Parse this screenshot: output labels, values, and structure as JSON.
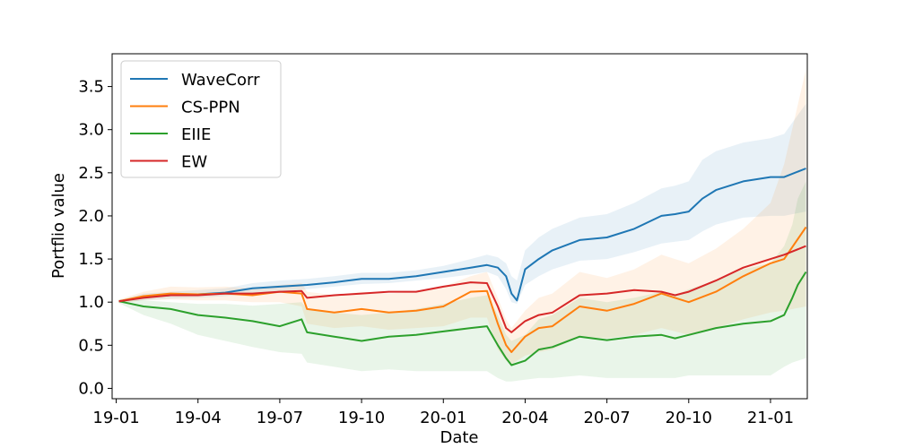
{
  "chart_data": {
    "type": "line",
    "title": "",
    "xlabel": "Date",
    "ylabel": "Portflio value",
    "xlim": [
      -0.15,
      25.35
    ],
    "ylim": [
      -0.12,
      3.88
    ],
    "x_ticks": [
      {
        "value": 0,
        "label": "19-01"
      },
      {
        "value": 3,
        "label": "19-04"
      },
      {
        "value": 6,
        "label": "19-07"
      },
      {
        "value": 9,
        "label": "19-10"
      },
      {
        "value": 12,
        "label": "20-01"
      },
      {
        "value": 15,
        "label": "20-04"
      },
      {
        "value": 18,
        "label": "20-07"
      },
      {
        "value": 21,
        "label": "20-10"
      },
      {
        "value": 24,
        "label": "21-01"
      }
    ],
    "y_ticks": [
      {
        "value": 0.0,
        "label": "0.0"
      },
      {
        "value": 0.5,
        "label": "0.5"
      },
      {
        "value": 1.0,
        "label": "1.0"
      },
      {
        "value": 1.5,
        "label": "1.5"
      },
      {
        "value": 2.0,
        "label": "2.0"
      },
      {
        "value": 2.5,
        "label": "2.5"
      },
      {
        "value": 3.0,
        "label": "3.0"
      },
      {
        "value": 3.5,
        "label": "3.5"
      }
    ],
    "grid": false,
    "legend_position": "top-left",
    "series": [
      {
        "name": "WaveCorr",
        "color": "#1f77b4",
        "x": [
          0.1,
          1,
          2,
          3,
          4,
          5,
          6,
          7,
          8,
          9,
          10,
          11,
          12,
          13,
          13.6,
          14,
          14.3,
          14.5,
          14.7,
          15,
          15.5,
          16,
          17,
          18,
          19,
          20,
          20.5,
          21,
          21.5,
          22,
          23,
          24,
          24.5,
          25.3
        ],
        "y": [
          1.01,
          1.06,
          1.08,
          1.09,
          1.11,
          1.16,
          1.18,
          1.2,
          1.23,
          1.27,
          1.27,
          1.3,
          1.35,
          1.4,
          1.43,
          1.4,
          1.3,
          1.1,
          1.02,
          1.38,
          1.5,
          1.6,
          1.72,
          1.75,
          1.85,
          2.0,
          2.02,
          2.05,
          2.2,
          2.3,
          2.4,
          2.45,
          2.45,
          2.55
        ],
        "band_lower": [
          1.0,
          1.02,
          1.04,
          1.05,
          1.07,
          1.1,
          1.12,
          1.15,
          1.18,
          1.21,
          1.22,
          1.25,
          1.28,
          1.32,
          1.35,
          1.3,
          1.15,
          1.0,
          0.98,
          1.2,
          1.3,
          1.38,
          1.48,
          1.5,
          1.58,
          1.68,
          1.7,
          1.72,
          1.82,
          1.9,
          1.98,
          2.0,
          2.0,
          2.05
        ],
        "band_upper": [
          1.02,
          1.1,
          1.12,
          1.14,
          1.16,
          1.22,
          1.25,
          1.27,
          1.3,
          1.34,
          1.34,
          1.37,
          1.42,
          1.5,
          1.55,
          1.52,
          1.45,
          1.3,
          1.25,
          1.6,
          1.75,
          1.85,
          1.98,
          2.02,
          2.15,
          2.32,
          2.35,
          2.4,
          2.65,
          2.75,
          2.85,
          2.9,
          2.95,
          3.3
        ]
      },
      {
        "name": "CS-PPN",
        "color": "#ff7f0e",
        "x": [
          0.1,
          1,
          2,
          3,
          4,
          5,
          6,
          6.8,
          7,
          8,
          9,
          10,
          11,
          12,
          13,
          13.6,
          14,
          14.3,
          14.5,
          15,
          15.5,
          16,
          17,
          18,
          19,
          20,
          20.5,
          21,
          22,
          23,
          24,
          24.5,
          25.3
        ],
        "y": [
          1.01,
          1.07,
          1.1,
          1.09,
          1.1,
          1.08,
          1.12,
          1.1,
          0.92,
          0.88,
          0.92,
          0.88,
          0.9,
          0.95,
          1.12,
          1.13,
          0.75,
          0.5,
          0.42,
          0.6,
          0.7,
          0.72,
          0.95,
          0.9,
          0.98,
          1.1,
          1.05,
          1.0,
          1.12,
          1.3,
          1.45,
          1.5,
          1.87
        ],
        "band_lower": [
          0.99,
          1.02,
          1.03,
          1.02,
          1.02,
          1.0,
          1.0,
          0.95,
          0.75,
          0.7,
          0.72,
          0.68,
          0.7,
          0.72,
          0.82,
          0.82,
          0.45,
          0.32,
          0.28,
          0.38,
          0.42,
          0.45,
          0.6,
          0.58,
          0.62,
          0.7,
          0.66,
          0.62,
          0.7,
          0.8,
          0.88,
          0.9,
          0.95
        ],
        "band_upper": [
          1.03,
          1.12,
          1.18,
          1.17,
          1.18,
          1.16,
          1.2,
          1.22,
          1.12,
          1.08,
          1.12,
          1.1,
          1.12,
          1.18,
          1.3,
          1.35,
          1.05,
          0.8,
          0.7,
          0.9,
          1.05,
          1.1,
          1.35,
          1.28,
          1.38,
          1.55,
          1.5,
          1.45,
          1.62,
          1.85,
          2.15,
          2.6,
          3.7
        ]
      },
      {
        "name": "EIIE",
        "color": "#2ca02c",
        "x": [
          0.1,
          1,
          2,
          3,
          4,
          5,
          6,
          6.8,
          7,
          8,
          9,
          10,
          11,
          12,
          13,
          13.6,
          14,
          14.3,
          14.5,
          15,
          15.5,
          16,
          17,
          18,
          19,
          20,
          20.5,
          21,
          22,
          23,
          24,
          24.5,
          24.8,
          25,
          25.3
        ],
        "y": [
          1.01,
          0.95,
          0.92,
          0.85,
          0.82,
          0.78,
          0.72,
          0.8,
          0.65,
          0.6,
          0.55,
          0.6,
          0.62,
          0.66,
          0.7,
          0.72,
          0.5,
          0.35,
          0.27,
          0.32,
          0.45,
          0.48,
          0.6,
          0.56,
          0.6,
          0.62,
          0.58,
          0.62,
          0.7,
          0.75,
          0.78,
          0.85,
          1.05,
          1.2,
          1.35
        ],
        "band_lower": [
          0.99,
          0.85,
          0.75,
          0.62,
          0.55,
          0.48,
          0.42,
          0.4,
          0.3,
          0.25,
          0.2,
          0.22,
          0.2,
          0.2,
          0.2,
          0.2,
          0.12,
          0.08,
          0.08,
          0.1,
          0.12,
          0.12,
          0.15,
          0.12,
          0.12,
          0.12,
          0.12,
          0.15,
          0.15,
          0.15,
          0.15,
          0.25,
          0.3,
          0.32,
          0.35
        ],
        "band_upper": [
          1.03,
          1.02,
          1.0,
          0.98,
          0.98,
          0.96,
          0.98,
          1.0,
          0.92,
          0.88,
          0.85,
          0.88,
          0.92,
          0.98,
          1.05,
          1.08,
          0.85,
          0.62,
          0.55,
          0.62,
          0.8,
          0.85,
          1.05,
          1.0,
          1.05,
          1.12,
          1.08,
          1.15,
          1.25,
          1.38,
          1.45,
          1.65,
          1.9,
          2.2,
          2.4
        ]
      },
      {
        "name": "EW",
        "color": "#d62728",
        "x": [
          0.1,
          1,
          2,
          3,
          4,
          5,
          6,
          6.8,
          7,
          8,
          9,
          10,
          11,
          12,
          13,
          13.6,
          14,
          14.3,
          14.5,
          15,
          15.5,
          16,
          17,
          18,
          19,
          20,
          20.5,
          21,
          22,
          23,
          24,
          24.5,
          25.3
        ],
        "y": [
          1.01,
          1.05,
          1.08,
          1.08,
          1.1,
          1.1,
          1.12,
          1.13,
          1.05,
          1.08,
          1.1,
          1.12,
          1.12,
          1.18,
          1.23,
          1.22,
          0.95,
          0.7,
          0.65,
          0.78,
          0.85,
          0.88,
          1.08,
          1.1,
          1.14,
          1.12,
          1.08,
          1.12,
          1.25,
          1.4,
          1.5,
          1.55,
          1.65
        ]
      }
    ]
  }
}
